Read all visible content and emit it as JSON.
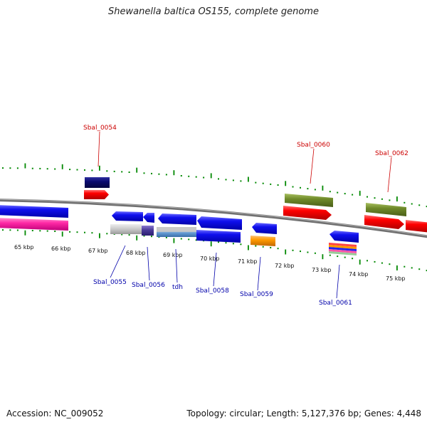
{
  "title": "Shewanella baltica OS155, complete genome",
  "footer": {
    "accession": "Accession: NC_009052",
    "summary": "Topology: circular; Length: 5,127,376 bp; Genes: 4,448"
  },
  "colors": {
    "tick_green": "#008800",
    "backbone_gray": "#808080",
    "label_red": "#cc0000",
    "label_blue": "#0000aa"
  },
  "kbp_ticks": [
    "65 kbp",
    "66 kbp",
    "67 kbp",
    "68 kbp",
    "69 kbp",
    "70 kbp",
    "71 kbp",
    "72 kbp",
    "73 kbp",
    "74 kbp",
    "75 kbp"
  ],
  "gene_labels": {
    "sbal_0054": "Sbal_0054",
    "sbal_0055": "Sbal_0055",
    "sbal_0056": "Sbal_0056",
    "tdh": "tdh",
    "sbal_0058": "Sbal_0058",
    "sbal_0059": "Sbal_0059",
    "sbal_0060": "Sbal_0060",
    "sbal_0061": "Sbal_0061",
    "sbal_0062": "Sbal_0062"
  }
}
